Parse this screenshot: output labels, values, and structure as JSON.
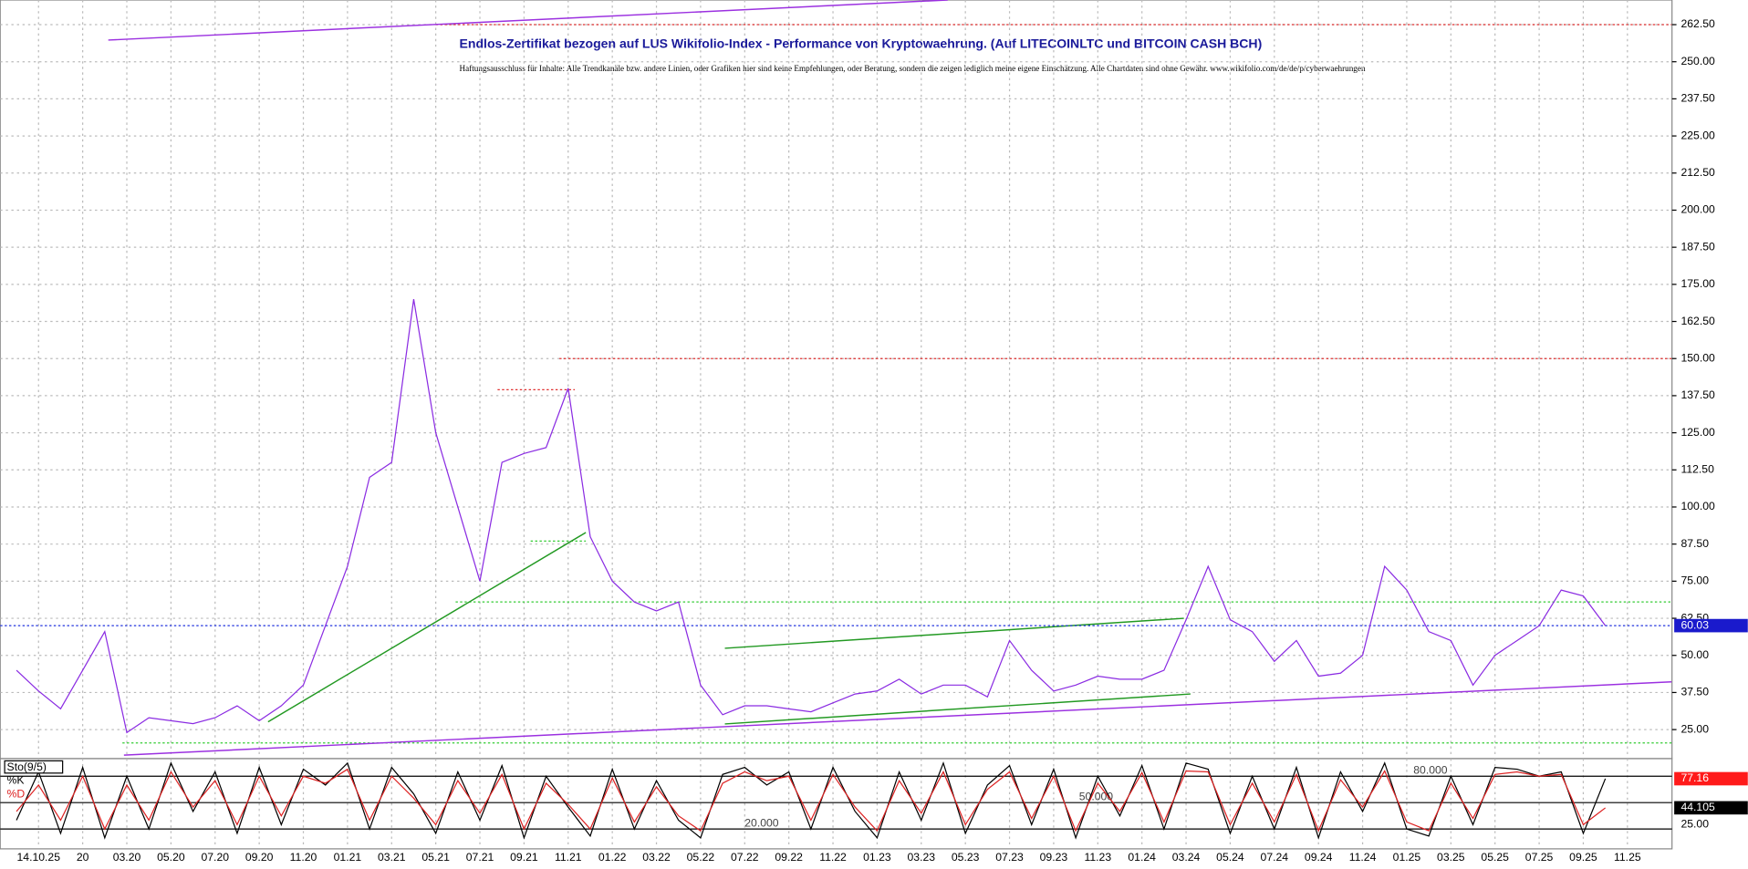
{
  "chart_data": [
    {
      "type": "line",
      "title": "Endlos-Zertifikat bezogen auf LUS Wikifolio-Index - Performance von Kryptowaehrung. (Auf LITECOINLTC und BITCOIN CASH BCH)",
      "subtitle": "Haftungsausschluss für Inhalte: Alle Trendkanäle bzw. andere Linien, oder Grafiken hier sind keine Empfehlungen, oder Beratung, sondern die zeigen lediglich meine eigene Einschätzung. Alle Chartdaten sind ohne Gewähr. www.wikifolio.com/de/de/p/cyberwaehrungen",
      "categories": [
        null,
        "14.10.25",
        null,
        "20",
        null,
        "03.20",
        null,
        "05.20",
        null,
        "07.20",
        null,
        "09.20",
        null,
        "11.20",
        null,
        "01.21",
        null,
        "03.21",
        null,
        "05.21",
        null,
        "07.21",
        null,
        "09.21",
        null,
        "11.21",
        null,
        "01.22",
        null,
        "03.22",
        null,
        "05.22",
        null,
        "07.22",
        null,
        "09.22",
        null,
        "11.22",
        null,
        "01.23",
        null,
        "03.23",
        null,
        "05.23",
        null,
        "07.23",
        null,
        "09.23",
        null,
        "11.23",
        null,
        "01.24",
        null,
        "03.24",
        null,
        "05.24",
        null,
        "07.24",
        null,
        "09.24",
        null,
        "11.24",
        null,
        "01.25",
        null,
        "03.25",
        null,
        "05.25",
        null,
        "07.25",
        null,
        "09.25",
        null,
        "11.25"
      ],
      "series": [
        {
          "color": "#8a2be2",
          "values": [
            45,
            38,
            32,
            45,
            58,
            24,
            29,
            28,
            27,
            29,
            33,
            28,
            33,
            40,
            60,
            80,
            110,
            115,
            170,
            125,
            100,
            75,
            115,
            118,
            120,
            140,
            90,
            75,
            68,
            65,
            68,
            40,
            30,
            33,
            33,
            32,
            31,
            34,
            37,
            38,
            42,
            37,
            40,
            40,
            36,
            55,
            45,
            38,
            40,
            43,
            42,
            42,
            45,
            62,
            80,
            62,
            58,
            48,
            55,
            43,
            44,
            50,
            80,
            72,
            58,
            55,
            40,
            50,
            55,
            60,
            72,
            70,
            60.03,
            null
          ]
        }
      ],
      "current_value": 60.03,
      "ylim": [
        15.6,
        270.8
      ],
      "yticks": [
        {
          "value": 25,
          "label": "25.00"
        },
        {
          "value": 37.5,
          "label": "37.50"
        },
        {
          "value": 50,
          "label": "50.00"
        },
        {
          "value": 62.5,
          "label": "62.50"
        },
        {
          "value": 75,
          "label": "75.00"
        },
        {
          "value": 87.5,
          "label": "87.50"
        },
        {
          "value": 100,
          "label": "100.00"
        },
        {
          "value": 112.5,
          "label": "112.50"
        },
        {
          "value": 125,
          "label": "125.00"
        },
        {
          "value": 137.5,
          "label": "137.50"
        },
        {
          "value": 150,
          "label": "150.00"
        },
        {
          "value": 162.5,
          "label": "162.50"
        },
        {
          "value": 175,
          "label": "175.00"
        },
        {
          "value": 187.5,
          "label": "187.50"
        },
        {
          "value": 200,
          "label": "200.00"
        },
        {
          "value": 212.5,
          "label": "212.50"
        },
        {
          "value": 225,
          "label": "225.00"
        },
        {
          "value": 237.5,
          "label": "237.50"
        },
        {
          "value": 250,
          "label": "250.00"
        },
        {
          "value": 262.5,
          "label": "262.50"
        }
      ],
      "grid": true,
      "levels": [
        {
          "value": 262.5,
          "x0": 19,
          "x1": 75,
          "color": "#e03030"
        },
        {
          "value": 150,
          "x0": 24.6,
          "x1": 75,
          "color": "#e03030"
        },
        {
          "value": 139.5,
          "x0": 21.8,
          "x1": 25.3,
          "color": "#e03030"
        },
        {
          "value": 88.5,
          "x0": 23.3,
          "x1": 25.8,
          "color": "#33cc33"
        },
        {
          "value": 68,
          "x0": 19.9,
          "x1": 75,
          "color": "#33cc33"
        },
        {
          "value": 20.5,
          "x0": 4.8,
          "x1": 75,
          "color": "#33cc33"
        }
      ],
      "trendlines": [
        {
          "x0": 4.87,
          "y0": 16.4,
          "x1": 75,
          "y1": 41.1,
          "color": "#9b30e0"
        },
        {
          "x0": 4.16,
          "y0": 257.3,
          "x1": 42.2,
          "y1": 270.8,
          "color": "#9b30e0"
        },
        {
          "x0": 11.4,
          "y0": 27.6,
          "x1": 25.8,
          "y1": 91.4,
          "color": "#229922"
        },
        {
          "x0": 32.1,
          "y0": 52.4,
          "x1": 52.9,
          "y1": 62.5,
          "color": "#229922"
        },
        {
          "x0": 32.1,
          "y0": 26.9,
          "x1": 53.2,
          "y1": 37.0,
          "color": "#229922"
        }
      ]
    },
    {
      "type": "line",
      "title": "Sto(9/5)",
      "series": [
        {
          "name": "%K",
          "color": "#000000",
          "values": [
            30,
            85,
            15,
            90,
            10,
            80,
            20,
            95,
            40,
            85,
            15,
            90,
            25,
            88,
            70,
            95,
            20,
            90,
            60,
            15,
            85,
            30,
            92,
            10,
            80,
            45,
            12,
            88,
            20,
            75,
            30,
            10,
            82,
            90,
            70,
            85,
            20,
            90,
            40,
            10,
            85,
            30,
            95,
            15,
            70,
            92,
            25,
            88,
            10,
            80,
            35,
            92,
            20,
            95,
            88,
            15,
            80,
            20,
            90,
            10,
            85,
            40,
            95,
            20,
            12,
            80,
            25,
            90,
            88,
            80,
            85,
            15,
            77.16,
            null
          ]
        },
        {
          "name": "%D",
          "color": "#dd2222",
          "values": [
            40,
            70,
            30,
            80,
            20,
            70,
            30,
            85,
            45,
            75,
            25,
            80,
            35,
            80,
            72,
            88,
            30,
            80,
            55,
            25,
            75,
            38,
            82,
            20,
            72,
            48,
            20,
            78,
            28,
            68,
            35,
            18,
            72,
            85,
            75,
            80,
            30,
            82,
            45,
            18,
            75,
            38,
            85,
            25,
            65,
            85,
            32,
            80,
            18,
            72,
            40,
            84,
            28,
            86,
            85,
            25,
            72,
            28,
            82,
            18,
            76,
            45,
            86,
            28,
            18,
            72,
            32,
            82,
            85,
            80,
            82,
            25,
            44.105,
            null
          ]
        }
      ],
      "ylim": [
        0,
        100
      ],
      "yticks": [
        {
          "value": 20,
          "label": "20.000"
        },
        {
          "value": 50,
          "label": "50.000"
        },
        {
          "value": 80,
          "label": "80.000"
        }
      ],
      "y2ticks": [
        {
          "value": 25,
          "label": "25.00"
        }
      ]
    }
  ]
}
